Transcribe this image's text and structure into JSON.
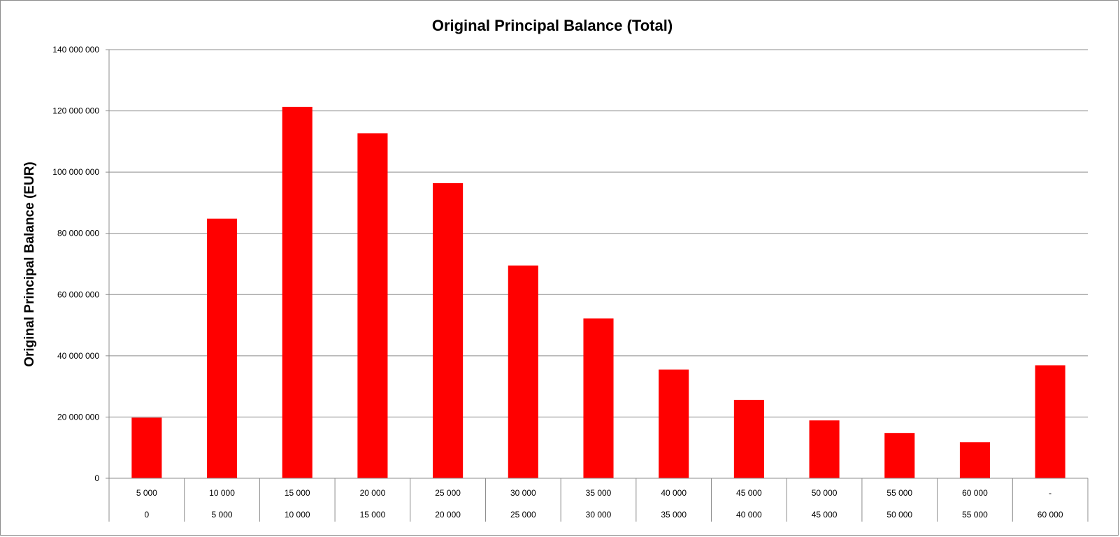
{
  "chart_data": {
    "type": "bar",
    "title": "Original Principal Balance (Total)",
    "xlabel": "",
    "ylabel": "Original Principal Balance (EUR)",
    "ylim": [
      0,
      140000000
    ],
    "yticks": [
      0,
      20000000,
      40000000,
      60000000,
      80000000,
      100000000,
      120000000,
      140000000
    ],
    "ytick_labels": [
      "0",
      "20 000 000",
      "40 000 000",
      "60 000 000",
      "80 000 000",
      "100 000 000",
      "120 000 000",
      "140 000 000"
    ],
    "categories_upper": [
      "5 000",
      "10 000",
      "15 000",
      "20 000",
      "25 000",
      "30 000",
      "35 000",
      "40 000",
      "45 000",
      "50 000",
      "55 000",
      "60 000",
      "-"
    ],
    "categories_lower": [
      "0",
      "5 000",
      "10 000",
      "15 000",
      "20 000",
      "25 000",
      "30 000",
      "35 000",
      "40 000",
      "45 000",
      "50 000",
      "55 000",
      "60 000"
    ],
    "values": [
      19800000,
      84800000,
      121300000,
      112700000,
      96400000,
      69500000,
      52200000,
      35500000,
      25600000,
      18900000,
      14800000,
      11800000,
      36900000
    ],
    "bar_color": "#ff0000",
    "grid": true,
    "legend": "none"
  }
}
